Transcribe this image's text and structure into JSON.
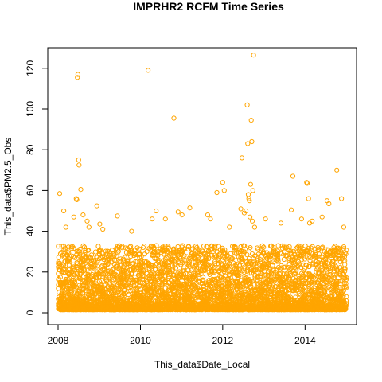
{
  "chart_data": {
    "type": "scatter",
    "title": "IMPRHR2 RCFM Time Series",
    "xlabel": "This_data$Date_Local",
    "ylabel": "This_data$PM2.5_Obs",
    "xlim": [
      "2008-01-01",
      "2015-01-01"
    ],
    "ylim": [
      0,
      125
    ],
    "x_ticks": [
      "2008",
      "2010",
      "2012",
      "2014"
    ],
    "y_ticks": [
      0,
      20,
      40,
      60,
      80,
      100,
      120
    ],
    "grid": false,
    "marker": "open-circle",
    "color": "#FFA500",
    "series": [
      {
        "points": [
          [
            "2008-01-15",
            58.5
          ],
          [
            "2008-02-20",
            50
          ],
          [
            "2008-03-10",
            42
          ],
          [
            "2008-06-20",
            115.5
          ],
          [
            "2008-06-25",
            117
          ],
          [
            "2008-07-01",
            75
          ],
          [
            "2008-07-05",
            72.5
          ],
          [
            "2008-06-10",
            56
          ],
          [
            "2008-06-15",
            55.5
          ],
          [
            "2008-07-20",
            60.5
          ],
          [
            "2008-08-10",
            48
          ],
          [
            "2008-05-20",
            47
          ],
          [
            "2008-09-15",
            45
          ],
          [
            "2008-10-01",
            42
          ],
          [
            "2008-12-10",
            52.5
          ],
          [
            "2009-01-05",
            43.5
          ],
          [
            "2009-02-01",
            41
          ],
          [
            "2009-06-10",
            47.5
          ],
          [
            "2009-10-15",
            40
          ],
          [
            "2010-03-10",
            119
          ],
          [
            "2010-04-15",
            46
          ],
          [
            "2010-05-20",
            50
          ],
          [
            "2010-08-10",
            46
          ],
          [
            "2010-10-25",
            95.5
          ],
          [
            "2010-12-01",
            49.5
          ],
          [
            "2011-01-05",
            48
          ],
          [
            "2011-03-15",
            51.5
          ],
          [
            "2011-08-20",
            48
          ],
          [
            "2011-09-15",
            46
          ],
          [
            "2011-11-10",
            59
          ],
          [
            "2012-01-01",
            64
          ],
          [
            "2012-01-15",
            60
          ],
          [
            "2012-03-01",
            42
          ],
          [
            "2012-06-10",
            51
          ],
          [
            "2012-06-20",
            76
          ],
          [
            "2012-07-10",
            49
          ],
          [
            "2012-07-25",
            50
          ],
          [
            "2012-08-05",
            102
          ],
          [
            "2012-08-10",
            83
          ],
          [
            "2012-08-15",
            58
          ],
          [
            "2012-08-20",
            56
          ],
          [
            "2012-08-25",
            55
          ],
          [
            "2012-08-30",
            47
          ],
          [
            "2012-09-05",
            63
          ],
          [
            "2012-09-10",
            94.5
          ],
          [
            "2012-09-15",
            84
          ],
          [
            "2012-09-20",
            45
          ],
          [
            "2012-09-25",
            60
          ],
          [
            "2012-10-01",
            126.5
          ],
          [
            "2012-10-10",
            42
          ],
          [
            "2013-01-15",
            46
          ],
          [
            "2013-06-01",
            44
          ],
          [
            "2013-09-01",
            50.5
          ],
          [
            "2013-09-15",
            67
          ],
          [
            "2013-12-01",
            46
          ],
          [
            "2014-01-15",
            64
          ],
          [
            "2014-01-20",
            63.5
          ],
          [
            "2014-02-01",
            56
          ],
          [
            "2014-02-10",
            44
          ],
          [
            "2014-03-05",
            45
          ],
          [
            "2014-06-01",
            47
          ],
          [
            "2014-07-15",
            55
          ],
          [
            "2014-08-01",
            53.5
          ],
          [
            "2014-10-10",
            70
          ],
          [
            "2014-11-20",
            56
          ],
          [
            "2014-12-10",
            42
          ]
        ],
        "dense_band": {
          "y_min": 0,
          "y_max": 35,
          "x_min": "2008-01-01",
          "x_max": "2015-01-01"
        }
      }
    ]
  }
}
